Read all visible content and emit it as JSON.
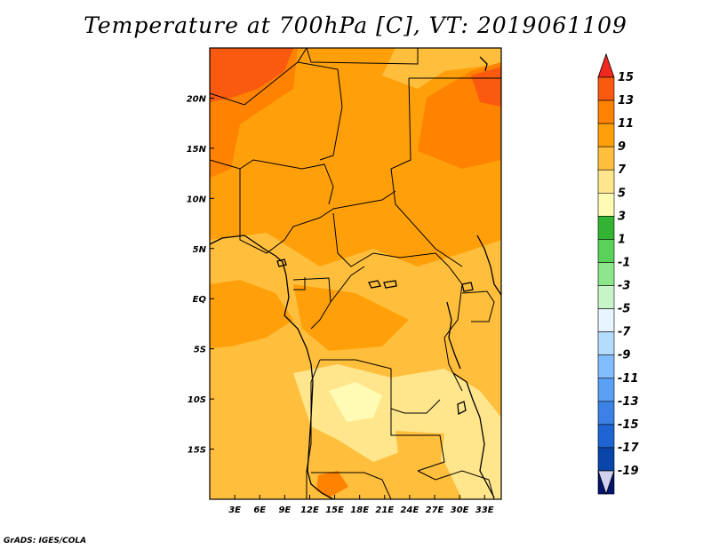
{
  "title": "Temperature at 700hPa [C], VT: 2019061109",
  "credit": "GrADS: IGES/COLA",
  "map": {
    "lon_range": [
      0,
      35
    ],
    "lat_range": [
      -20,
      25
    ],
    "lon_ticks": [
      {
        "lon": 3,
        "label": "3E"
      },
      {
        "lon": 6,
        "label": "6E"
      },
      {
        "lon": 9,
        "label": "9E"
      },
      {
        "lon": 12,
        "label": "12E"
      },
      {
        "lon": 15,
        "label": "15E"
      },
      {
        "lon": 18,
        "label": "18E"
      },
      {
        "lon": 21,
        "label": "21E"
      },
      {
        "lon": 24,
        "label": "24E"
      },
      {
        "lon": 27,
        "label": "27E"
      },
      {
        "lon": 30,
        "label": "30E"
      },
      {
        "lon": 33,
        "label": "33E"
      }
    ],
    "lat_ticks": [
      {
        "lat": 20,
        "label": "20N"
      },
      {
        "lat": 15,
        "label": "15N"
      },
      {
        "lat": 10,
        "label": "10N"
      },
      {
        "lat": 5,
        "label": "5N"
      },
      {
        "lat": 0,
        "label": "EQ"
      },
      {
        "lat": -5,
        "label": "5S"
      },
      {
        "lat": -10,
        "label": "10S"
      },
      {
        "lat": -15,
        "label": "15S"
      }
    ]
  },
  "colorbar": {
    "levels": [
      "15",
      "13",
      "11",
      "9",
      "7",
      "5",
      "3",
      "1",
      "-1",
      "-3",
      "-5",
      "-7",
      "-9",
      "-11",
      "-13",
      "-15",
      "-17",
      "-19"
    ],
    "colors": [
      "#f0281e",
      "#fa5a0f",
      "#ff8200",
      "#ffa00a",
      "#ffbe3c",
      "#ffe68c",
      "#fffab4",
      "#32b432",
      "#5ad25a",
      "#8ce68c",
      "#c8f5c8",
      "#e6f5ff",
      "#b4dcff",
      "#82beff",
      "#5aa0f5",
      "#3c82e6",
      "#1e64d2",
      "#0a46aa",
      "#00146e",
      "#d2d2f0"
    ]
  }
}
